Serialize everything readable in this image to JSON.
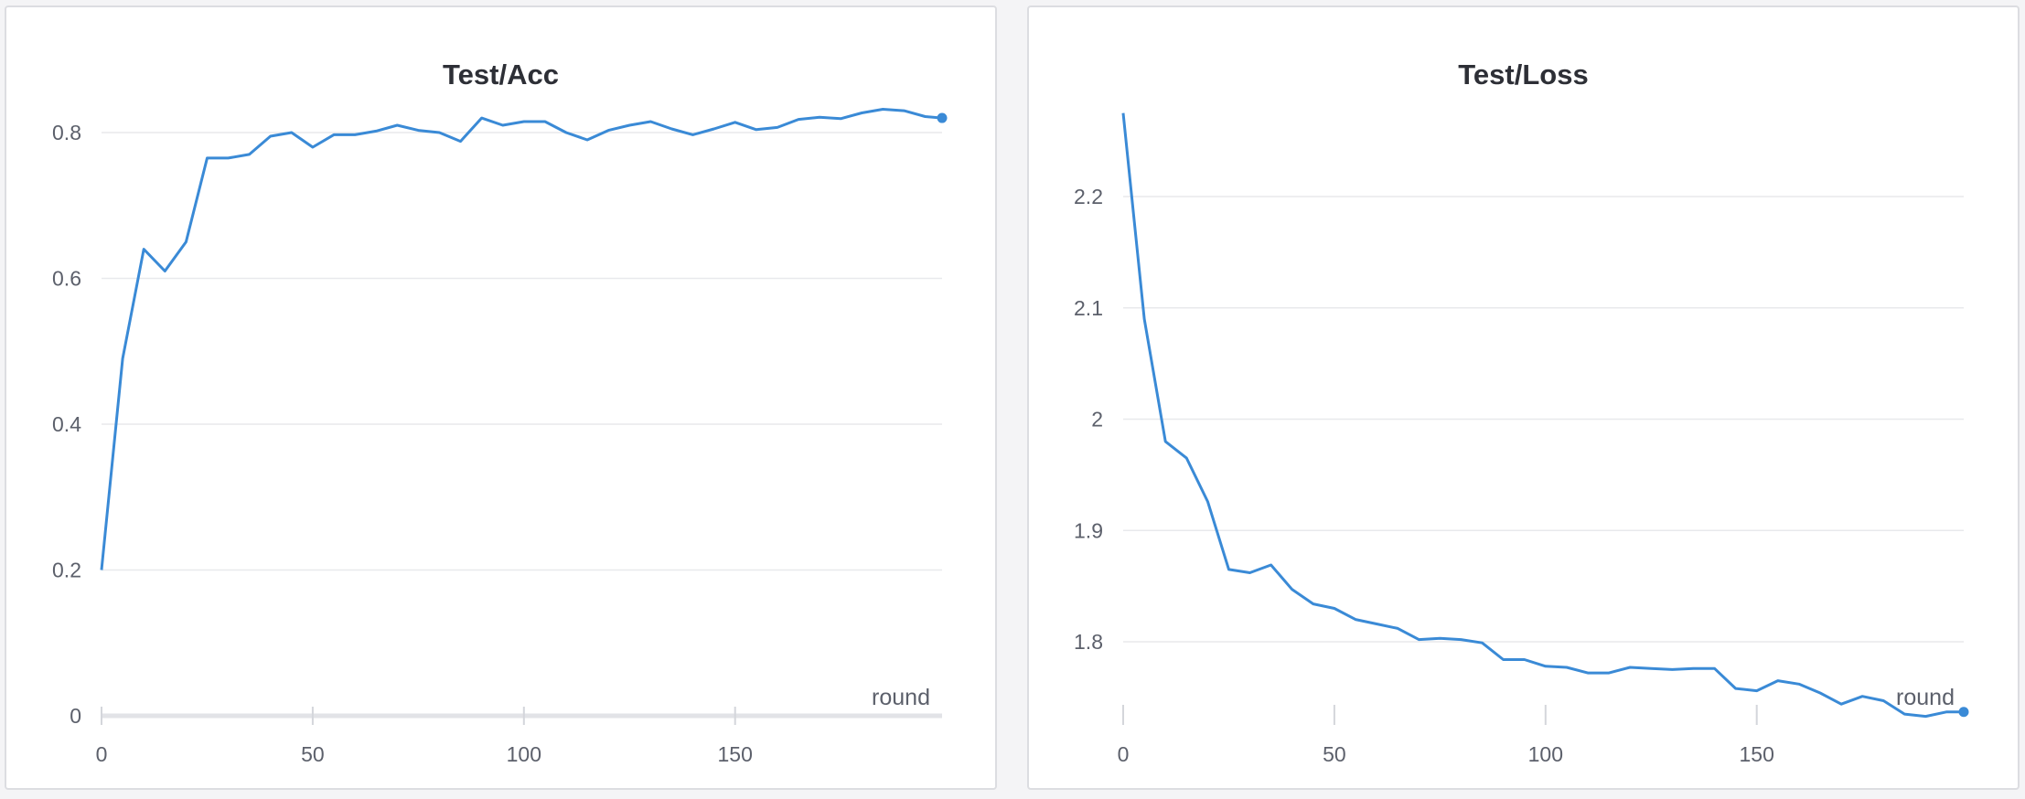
{
  "colors": {
    "series": "#3a8ad6",
    "panel_border": "#dcdde1",
    "background": "#f4f4f6"
  },
  "chart_data": [
    {
      "type": "line",
      "title": "Test/Acc",
      "xlabel": "round",
      "ylabel": "",
      "xlim": [
        0,
        199
      ],
      "ylim": [
        0,
        0.9
      ],
      "x_ticks": [
        0,
        50,
        100,
        150
      ],
      "x_tick_labels": [
        "0",
        "50",
        "100",
        "150"
      ],
      "y_ticks": [
        0,
        0.2,
        0.4,
        0.6,
        0.8
      ],
      "y_tick_labels": [
        "0",
        "0.2",
        "0.4",
        "0.6",
        "0.8"
      ],
      "grid": true,
      "x_axis_line": true,
      "series": [
        {
          "x": [
            0,
            5,
            10,
            15,
            20,
            25,
            30,
            35,
            40,
            45,
            50,
            55,
            60,
            65,
            70,
            75,
            80,
            85,
            90,
            95,
            100,
            105,
            110,
            115,
            120,
            125,
            130,
            135,
            140,
            145,
            150,
            155,
            160,
            165,
            170,
            175,
            180,
            185,
            190,
            195,
            199
          ],
          "values": [
            0.2,
            0.49,
            0.64,
            0.61,
            0.65,
            0.765,
            0.765,
            0.77,
            0.795,
            0.8,
            0.78,
            0.797,
            0.797,
            0.802,
            0.81,
            0.803,
            0.8,
            0.788,
            0.82,
            0.81,
            0.815,
            0.815,
            0.8,
            0.79,
            0.803,
            0.81,
            0.815,
            0.805,
            0.797,
            0.805,
            0.814,
            0.804,
            0.807,
            0.818,
            0.821,
            0.819,
            0.827,
            0.832,
            0.83,
            0.822,
            0.82
          ]
        }
      ]
    },
    {
      "type": "line",
      "title": "Test/Loss",
      "xlabel": "round",
      "ylabel": "",
      "xlim": [
        0,
        199
      ],
      "ylim": [
        1.735,
        2.29
      ],
      "x_ticks": [
        0,
        50,
        100,
        150
      ],
      "x_tick_labels": [
        "0",
        "50",
        "100",
        "150"
      ],
      "y_ticks": [
        1.8,
        1.9,
        2,
        2.1,
        2.2
      ],
      "y_tick_labels": [
        "1.8",
        "1.9",
        "2",
        "2.1",
        "2.2"
      ],
      "grid": true,
      "x_axis_line": false,
      "series": [
        {
          "x": [
            0,
            5,
            10,
            15,
            20,
            25,
            30,
            35,
            40,
            45,
            50,
            55,
            60,
            65,
            70,
            75,
            80,
            85,
            90,
            95,
            100,
            105,
            110,
            115,
            120,
            125,
            130,
            135,
            140,
            145,
            150,
            155,
            160,
            165,
            170,
            175,
            180,
            185,
            190,
            195,
            199
          ],
          "values": [
            2.275,
            2.09,
            1.98,
            1.965,
            1.926,
            1.865,
            1.862,
            1.869,
            1.847,
            1.834,
            1.83,
            1.82,
            1.816,
            1.812,
            1.802,
            1.803,
            1.802,
            1.799,
            1.784,
            1.784,
            1.778,
            1.777,
            1.772,
            1.772,
            1.777,
            1.776,
            1.775,
            1.776,
            1.776,
            1.758,
            1.756,
            1.765,
            1.762,
            1.754,
            1.744,
            1.751,
            1.747,
            1.735,
            1.733,
            1.737,
            1.737
          ]
        }
      ]
    }
  ]
}
